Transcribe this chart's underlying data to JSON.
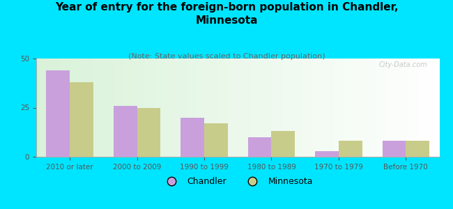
{
  "title": "Year of entry for the foreign-born population in Chandler,\nMinnesota",
  "subtitle": "(Note: State values scaled to Chandler population)",
  "categories": [
    "2010 or later",
    "2000 to 2009",
    "1990 to 1999",
    "1980 to 1989",
    "1970 to 1979",
    "Before 1970"
  ],
  "chandler_values": [
    44,
    26,
    20,
    10,
    3,
    8
  ],
  "minnesota_values": [
    38,
    25,
    17,
    13,
    8,
    8
  ],
  "chandler_color": "#c9a0dc",
  "minnesota_color": "#c8cc8a",
  "ylim": [
    0,
    50
  ],
  "yticks": [
    0,
    25,
    50
  ],
  "background_color": "#00e5ff",
  "title_fontsize": 11,
  "subtitle_fontsize": 8,
  "tick_fontsize": 7.5,
  "legend_fontsize": 9,
  "watermark": "City-Data.com",
  "bar_width": 0.35
}
